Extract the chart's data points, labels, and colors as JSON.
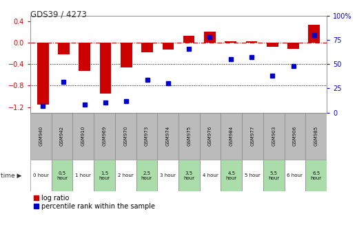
{
  "title": "GDS39 / 4273",
  "samples": [
    "GSM940",
    "GSM942",
    "GSM910",
    "GSM969",
    "GSM970",
    "GSM973",
    "GSM974",
    "GSM975",
    "GSM976",
    "GSM984",
    "GSM977",
    "GSM903",
    "GSM906",
    "GSM985"
  ],
  "time_labels": [
    "0 hour",
    "0.5\nhour",
    "1 hour",
    "1.5\nhour",
    "2 hour",
    "2.5\nhour",
    "3 hour",
    "3.5\nhour",
    "4 hour",
    "4.5\nhour",
    "5 hour",
    "5.5\nhour",
    "6 hour",
    "6.5\nhour"
  ],
  "time_bg": [
    "#ffffff",
    "#aaddaa",
    "#ffffff",
    "#aaddaa",
    "#ffffff",
    "#aaddaa",
    "#ffffff",
    "#aaddaa",
    "#ffffff",
    "#aaddaa",
    "#ffffff",
    "#aaddaa",
    "#ffffff",
    "#aaddaa"
  ],
  "log_ratio": [
    -1.15,
    -0.22,
    -0.52,
    -0.95,
    -0.46,
    -0.18,
    -0.13,
    0.13,
    0.21,
    0.03,
    0.02,
    -0.08,
    -0.11,
    0.33
  ],
  "percentile": [
    7,
    32,
    8,
    10,
    12,
    34,
    30,
    66,
    78,
    55,
    57,
    38,
    48,
    80
  ],
  "ylim_left": [
    -1.3,
    0.5
  ],
  "ylim_right": [
    0,
    100
  ],
  "bar_color": "#cc0000",
  "dot_color": "#0000cc",
  "ref_line_color": "#cc0000",
  "grid_color": "#000000",
  "gsm_bg": "#bbbbbb",
  "label_log": "log ratio",
  "label_pct": "percentile rank within the sample"
}
